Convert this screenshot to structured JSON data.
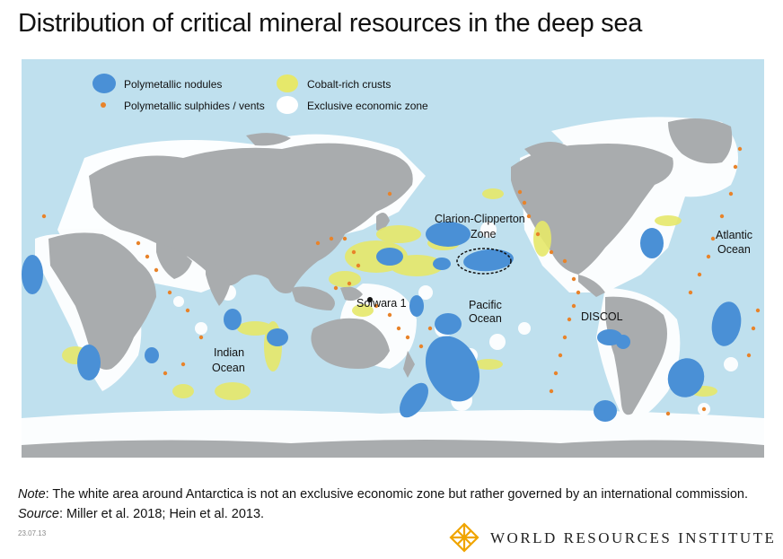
{
  "title": "Distribution of critical mineral resources in the deep sea",
  "legend": {
    "nodules": "Polymetallic nodules",
    "crusts": "Cobalt-rich crusts",
    "sulphides": "Polymetallic sulphides / vents",
    "eez": "Exclusive economic zone"
  },
  "labels": {
    "ccz_line1": "Clarion-Clipperton",
    "ccz_line2": "Zone",
    "pacific_line1": "Pacific",
    "pacific_line2": "Ocean",
    "atlantic_line1": "Atlantic",
    "atlantic_line2": "Ocean",
    "indian_line1": "Indian",
    "indian_line2": "Ocean",
    "solwara": "Solwara 1",
    "discol": "DISCOL"
  },
  "note": {
    "note_label": "Note",
    "note_text": ": The white area around Antarctica is not an exclusive economic zone but rather governed by an international commission.",
    "source_label": "Source",
    "source_text": ": Miller et al. 2018; Hein et al. 2013."
  },
  "date": "23.07.13",
  "logo": {
    "text": "WORLD RESOURCES INSTITUTE",
    "icon": "wri-lattice-icon"
  },
  "colors": {
    "ocean": "#bfe0ee",
    "land": "#a9acae",
    "eez": "#ffffff",
    "nodules": "#4a90d6",
    "crusts": "#e6e86a",
    "sulphides": "#e8832a",
    "logo_accent": "#f0a500"
  }
}
